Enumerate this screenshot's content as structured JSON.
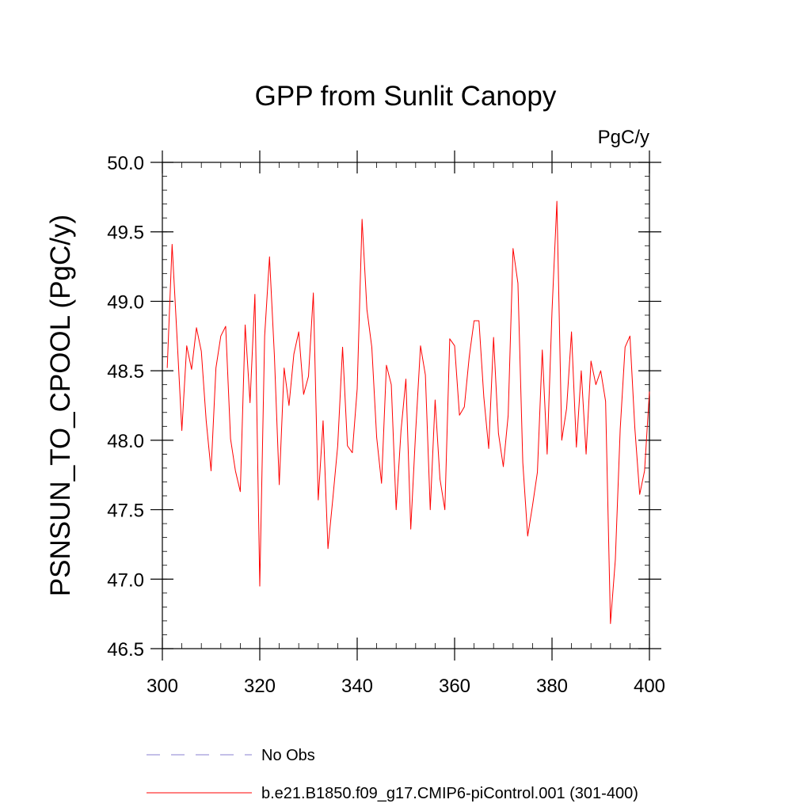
{
  "chart_data": {
    "type": "line",
    "title": "GPP from Sunlit Canopy",
    "units_label": "PgC/y",
    "xlabel": "",
    "ylabel": "PSNSUN_TO_CPOOL  (PgC/y)",
    "xlim": [
      300,
      400
    ],
    "ylim": [
      46.5,
      50.0
    ],
    "x_ticks": [
      "300",
      "320",
      "340",
      "360",
      "380",
      "400"
    ],
    "y_ticks": [
      "46.5",
      "47.0",
      "47.5",
      "48.0",
      "48.5",
      "49.0",
      "49.5",
      "50.0"
    ],
    "x": [
      301,
      302,
      303,
      304,
      305,
      306,
      307,
      308,
      309,
      310,
      311,
      312,
      313,
      314,
      315,
      316,
      317,
      318,
      319,
      320,
      321,
      322,
      323,
      324,
      325,
      326,
      327,
      328,
      329,
      330,
      331,
      332,
      333,
      334,
      335,
      336,
      337,
      338,
      339,
      340,
      341,
      342,
      343,
      344,
      345,
      346,
      347,
      348,
      349,
      350,
      351,
      352,
      353,
      354,
      355,
      356,
      357,
      358,
      359,
      360,
      361,
      362,
      363,
      364,
      365,
      366,
      367,
      368,
      369,
      370,
      371,
      372,
      373,
      374,
      375,
      376,
      377,
      378,
      379,
      380,
      381,
      382,
      383,
      384,
      385,
      386,
      387,
      388,
      389,
      390,
      391,
      392,
      393,
      394,
      395,
      396,
      397,
      398,
      399,
      400
    ],
    "series": [
      {
        "name": "b.e21.B1850.f09_g17.CMIP6-piControl.001 (301-400)",
        "color": "#ff0000",
        "style": "solid",
        "values": [
          48.52,
          49.41,
          48.75,
          48.07,
          48.68,
          48.51,
          48.81,
          48.64,
          48.14,
          47.78,
          48.52,
          48.75,
          48.82,
          48.01,
          47.78,
          47.63,
          48.83,
          48.27,
          49.05,
          46.95,
          48.75,
          49.32,
          48.61,
          47.68,
          48.52,
          48.25,
          48.62,
          48.78,
          48.33,
          48.46,
          49.06,
          47.57,
          48.14,
          47.22,
          47.58,
          47.96,
          48.67,
          47.96,
          47.91,
          48.37,
          49.59,
          48.94,
          48.67,
          48.02,
          47.69,
          48.54,
          48.4,
          47.5,
          48.07,
          48.44,
          47.36,
          48.06,
          48.68,
          48.47,
          47.5,
          48.29,
          47.72,
          47.5,
          48.73,
          48.68,
          48.18,
          48.24,
          48.6,
          48.86,
          48.86,
          48.31,
          47.94,
          48.74,
          48.05,
          47.81,
          48.18,
          49.38,
          49.13,
          47.84,
          47.31,
          47.53,
          47.77,
          48.65,
          47.9,
          48.93,
          49.72,
          48.0,
          48.23,
          48.78,
          47.95,
          48.5,
          47.9,
          48.57,
          48.4,
          48.5,
          48.28,
          46.68,
          47.14,
          48.08,
          48.67,
          48.75,
          48.09,
          47.61,
          47.78,
          48.35
        ]
      }
    ],
    "legend": [
      {
        "label": "No Obs",
        "color": "#8a7fd0",
        "style": "dashed"
      },
      {
        "label": "b.e21.B1850.f09_g17.CMIP6-piControl.001 (301-400)",
        "color": "#ff0000",
        "style": "solid"
      }
    ]
  }
}
